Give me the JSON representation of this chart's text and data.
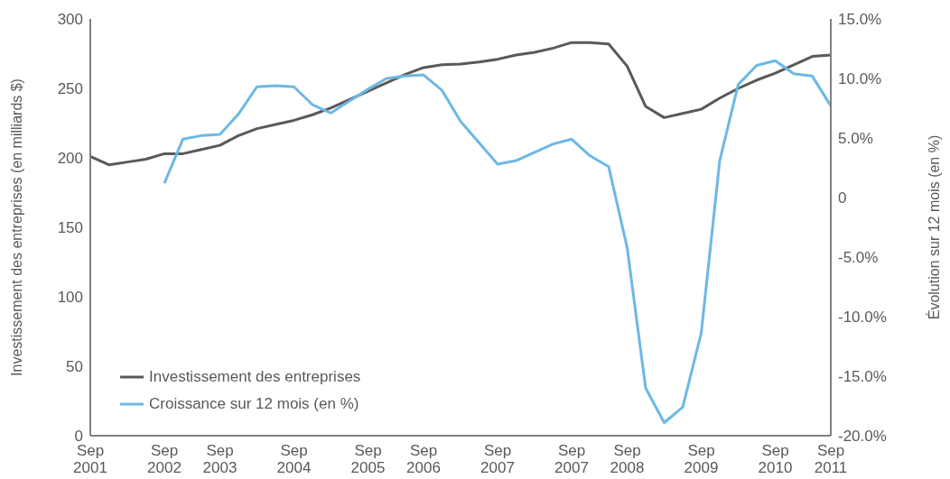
{
  "chart_data": {
    "type": "line",
    "categories": [
      "Sep 2001",
      null,
      null,
      null,
      "Sep 2002",
      null,
      null,
      "Sep 2003",
      null,
      null,
      null,
      "Sep 2004",
      null,
      null,
      null,
      "Sep 2005",
      null,
      null,
      "Sep 2006",
      null,
      null,
      null,
      "Sep 2007",
      null,
      null,
      null,
      "Sep 2007",
      null,
      null,
      "Sep 2008",
      null,
      null,
      null,
      "Sep 2009",
      null,
      null,
      null,
      "Sep 2010",
      null,
      null,
      "Sep 2011"
    ],
    "series": [
      {
        "name": "Investissement des entreprises",
        "color": "#595959",
        "values": [
          201,
          195,
          197,
          199,
          203,
          203,
          206,
          209,
          216,
          221,
          224,
          227,
          231,
          236,
          242,
          248,
          254,
          260,
          265,
          267,
          267.5,
          269,
          271,
          274,
          276,
          279,
          283,
          283,
          282,
          266,
          237,
          229,
          232,
          235,
          243,
          250,
          256,
          261,
          267,
          273,
          274
        ]
      },
      {
        "name": "Croissance sur 12 mois (en %)",
        "color": "#6cb8e6",
        "axis": "y2",
        "values": [
          null,
          null,
          null,
          null,
          1.2,
          4.9,
          5.2,
          5.3,
          7.0,
          9.3,
          9.4,
          9.3,
          7.8,
          7.1,
          8.1,
          9.1,
          10.0,
          10.2,
          10.3,
          9.0,
          6.4,
          4.6,
          2.8,
          3.1,
          3.8,
          4.5,
          4.9,
          3.5,
          2.6,
          -4.2,
          -16.0,
          -18.9,
          -17.6,
          -11.4,
          3.1,
          9.5,
          11.1,
          11.5,
          10.4,
          10.2,
          7.7
        ]
      }
    ],
    "ylabel": "Investissement des entreprises (en milliards $)",
    "y2label": "Évolution sur 12 mois (en %)",
    "ylim": [
      0,
      300
    ],
    "yticks": [
      0,
      50,
      100,
      150,
      200,
      250,
      300
    ],
    "y2lim": [
      -20,
      15
    ],
    "y2ticks": [
      {
        "value": -20,
        "label": "-20.0%"
      },
      {
        "value": -15,
        "label": "-15.0%"
      },
      {
        "value": -10,
        "label": "-10.0%"
      },
      {
        "value": -5,
        "label": "-5.0%"
      },
      {
        "value": 0,
        "label": "0"
      },
      {
        "value": 5,
        "label": "5.0%"
      },
      {
        "value": 10,
        "label": "10.0%"
      },
      {
        "value": 15,
        "label": "15.0%"
      }
    ],
    "legend": "bottom left",
    "grid": false,
    "marker": "none",
    "line_style": "solid"
  }
}
